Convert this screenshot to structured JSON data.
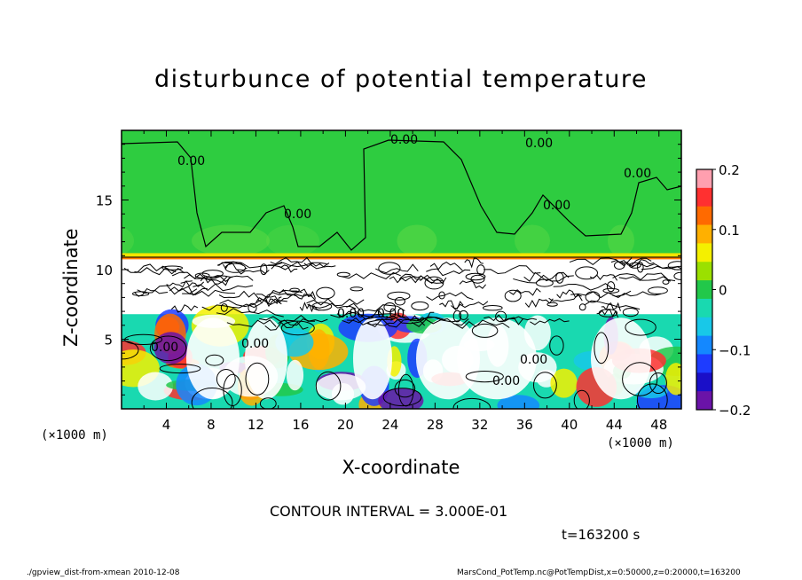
{
  "chart_data": {
    "type": "heatmap",
    "title": "disturbunce of potential temperature",
    "xlabel": "X-coordinate",
    "ylabel": "Z-coordinate",
    "x_unit_label": "(×1000 m)",
    "x_ticks": [
      4,
      8,
      12,
      16,
      20,
      24,
      28,
      32,
      36,
      40,
      44,
      48
    ],
    "y_ticks": [
      5,
      10,
      15
    ],
    "xlim": [
      0,
      50
    ],
    "ylim": [
      0,
      20
    ],
    "colorbar": {
      "ticks": [
        "0.2",
        "0.1",
        "0",
        "−0.1",
        "−0.2"
      ],
      "range": [
        -0.2,
        0.2
      ],
      "colors": [
        "#ff9faf",
        "#ff3030",
        "#ff6a00",
        "#ffb000",
        "#f4f000",
        "#9be000",
        "#22c84a",
        "#19d9b0",
        "#18c8e8",
        "#1488ff",
        "#1e3cff",
        "#1a0fc8",
        "#6a13a8"
      ]
    },
    "contour_labels": [
      "0.00",
      "0.00",
      "0.00",
      "0.00",
      "0.00",
      "0.00",
      "0.00",
      "0.00",
      "0.00",
      "0.00",
      "0.00",
      "0.00"
    ],
    "contour_interval": "CONTOUR INTERVAL = 3.000E-01"
  },
  "annotations": {
    "time": "t=163200 s",
    "footer_left": "./gpview_dist-from-xmean  2010-12-08",
    "footer_right": "MarsCond_PotTemp.nc@PotTempDist,x=0:50000,z=0:20000,t=163200"
  }
}
